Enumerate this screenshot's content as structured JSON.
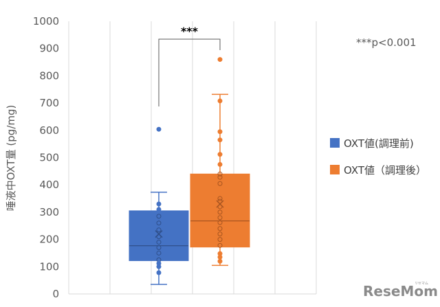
{
  "chart_data": {
    "type": "box",
    "ylabel": "唾液中OXT量 (pg/mg)",
    "ylim": [
      0,
      1000
    ],
    "yticks": [
      0,
      100,
      200,
      300,
      400,
      500,
      600,
      700,
      800,
      900,
      1000
    ],
    "grid": "vertical",
    "legend_position": "right",
    "significance": {
      "label": "***",
      "note": "***p<0.001"
    },
    "series": [
      {
        "name": "OXT値(調理前)",
        "color": "#4472C4",
        "whisker_low": 35,
        "q1": 122,
        "median": 177,
        "q3": 305,
        "whisker_high": 373,
        "mean": 220,
        "points": [
          604,
          330,
          310,
          285,
          260,
          235,
          210,
          190,
          170,
          150,
          125,
          112,
          100,
          78
        ]
      },
      {
        "name": "OXT値（調理後）",
        "color": "#ED7D31",
        "whisker_low": 105,
        "q1": 172,
        "median": 268,
        "q3": 440,
        "whisker_high": 732,
        "mean": 330,
        "points": [
          860,
          708,
          595,
          565,
          512,
          475,
          440,
          428,
          405,
          350,
          340,
          320,
          300,
          280,
          262,
          240,
          220,
          200,
          178,
          148,
          135,
          120
        ]
      }
    ]
  },
  "watermark": {
    "text": "ReseMom",
    "sub": "リセマム"
  }
}
